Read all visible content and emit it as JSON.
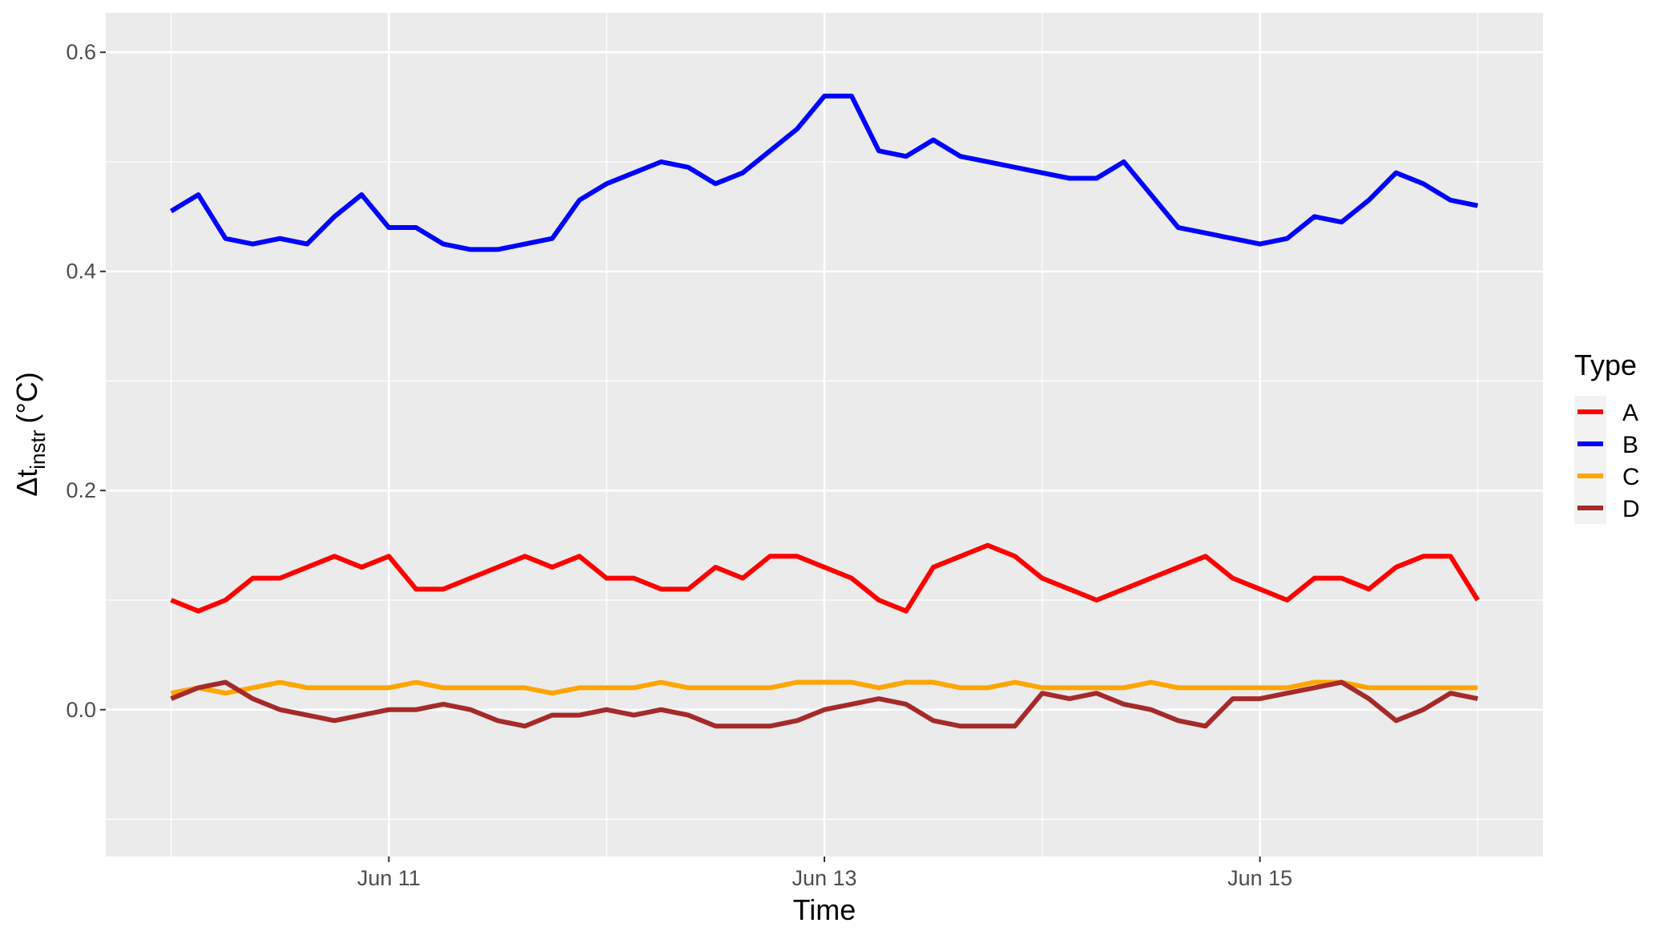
{
  "chart_data": {
    "type": "line",
    "x_label": "Time",
    "y_label": "Δt",
    "y_label_sub": "instr",
    "y_label_suffix": "(°C)",
    "legend_title": "Type",
    "legend_position": "right",
    "grid": true,
    "x": [
      10,
      10.125,
      10.25,
      10.375,
      10.5,
      10.625,
      10.75,
      10.875,
      11,
      11.125,
      11.25,
      11.375,
      11.5,
      11.625,
      11.75,
      11.875,
      12,
      12.125,
      12.25,
      12.375,
      12.5,
      12.625,
      12.75,
      12.875,
      13,
      13.125,
      13.25,
      13.375,
      13.5,
      13.625,
      13.75,
      13.875,
      14,
      14.125,
      14.25,
      14.375,
      14.5,
      14.625,
      14.75,
      14.875,
      15,
      15.125,
      15.25,
      15.375,
      15.5,
      15.625,
      15.75,
      15.875,
      16
    ],
    "xlim": [
      9.7,
      16.3
    ],
    "xticks": [
      {
        "value": 11,
        "label": "Jun 11"
      },
      {
        "value": 13,
        "label": "Jun 13"
      },
      {
        "value": 15,
        "label": "Jun 15"
      }
    ],
    "xminor": [
      10,
      12,
      14,
      16
    ],
    "ylim": [
      -0.134,
      0.636
    ],
    "yticks": [
      {
        "value": 0,
        "label": "0.0"
      },
      0.2,
      0.4,
      0.6
    ],
    "yminor": [
      -0.1,
      0.1,
      0.3,
      0.5
    ],
    "series": [
      {
        "name": "A",
        "color": "#ff0000",
        "values": [
          0.1,
          0.09,
          0.1,
          0.12,
          0.12,
          0.13,
          0.14,
          0.13,
          0.14,
          0.11,
          0.11,
          0.12,
          0.13,
          0.14,
          0.13,
          0.14,
          0.12,
          0.12,
          0.11,
          0.11,
          0.13,
          0.12,
          0.14,
          0.14,
          0.13,
          0.12,
          0.1,
          0.09,
          0.13,
          0.14,
          0.15,
          0.14,
          0.12,
          0.11,
          0.1,
          0.11,
          0.12,
          0.13,
          0.14,
          0.12,
          0.11,
          0.1,
          0.12,
          0.12,
          0.11,
          0.13,
          0.14,
          0.14,
          0.1
        ]
      },
      {
        "name": "B",
        "color": "#0000ff",
        "values": [
          0.455,
          0.47,
          0.43,
          0.425,
          0.43,
          0.425,
          0.45,
          0.47,
          0.44,
          0.44,
          0.425,
          0.42,
          0.42,
          0.425,
          0.43,
          0.465,
          0.48,
          0.49,
          0.5,
          0.495,
          0.48,
          0.49,
          0.51,
          0.53,
          0.56,
          0.56,
          0.51,
          0.505,
          0.52,
          0.505,
          0.5,
          0.495,
          0.49,
          0.485,
          0.485,
          0.5,
          0.47,
          0.44,
          0.435,
          0.43,
          0.425,
          0.43,
          0.45,
          0.445,
          0.465,
          0.49,
          0.48,
          0.465,
          0.46
        ]
      },
      {
        "name": "C",
        "color": "#ffa500",
        "values": [
          0.015,
          0.02,
          0.015,
          0.02,
          0.025,
          0.02,
          0.02,
          0.02,
          0.02,
          0.025,
          0.02,
          0.02,
          0.02,
          0.02,
          0.015,
          0.02,
          0.02,
          0.02,
          0.025,
          0.02,
          0.02,
          0.02,
          0.02,
          0.025,
          0.025,
          0.025,
          0.02,
          0.025,
          0.025,
          0.02,
          0.02,
          0.025,
          0.02,
          0.02,
          0.02,
          0.02,
          0.025,
          0.02,
          0.02,
          0.02,
          0.02,
          0.02,
          0.025,
          0.025,
          0.02,
          0.02,
          0.02,
          0.02,
          0.02
        ]
      },
      {
        "name": "D",
        "color": "#a52a2a",
        "values": [
          0.01,
          0.02,
          0.025,
          0.01,
          0.0,
          -0.005,
          -0.01,
          -0.005,
          0.0,
          0.0,
          0.005,
          0.0,
          -0.01,
          -0.015,
          -0.005,
          -0.005,
          0.0,
          -0.005,
          0.0,
          -0.005,
          -0.015,
          -0.015,
          -0.015,
          -0.01,
          0.0,
          0.005,
          0.01,
          0.005,
          -0.01,
          -0.015,
          -0.015,
          -0.015,
          0.015,
          0.01,
          0.015,
          0.005,
          0.0,
          -0.01,
          -0.015,
          0.01,
          0.01,
          0.015,
          0.02,
          0.025,
          0.01,
          -0.01,
          0.0,
          0.015,
          0.01
        ]
      }
    ]
  }
}
